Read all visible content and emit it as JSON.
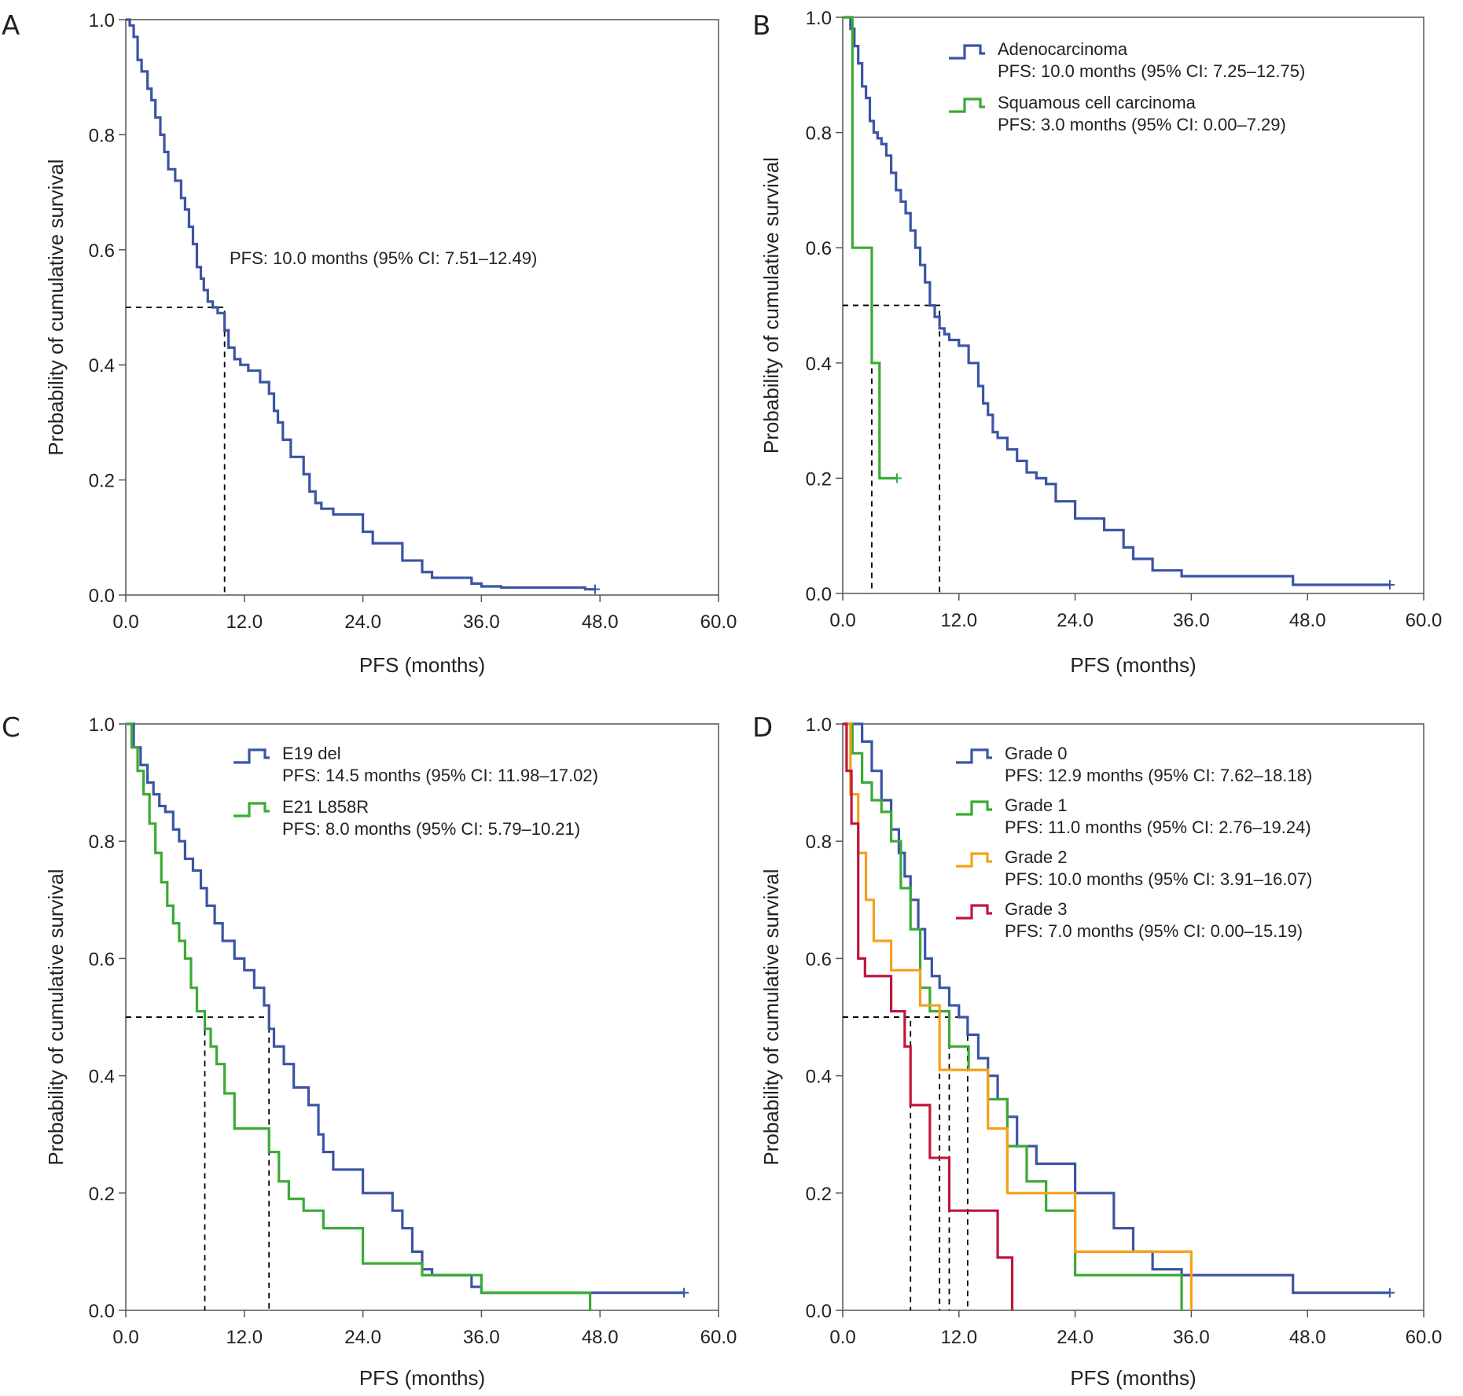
{
  "figure": {
    "panels": [
      "A",
      "B",
      "C",
      "D"
    ]
  },
  "chart_data": [
    {
      "panel_label": "A",
      "type": "line",
      "subtype": "kaplan-meier",
      "xlabel": "PFS (months)",
      "ylabel": "Probability of cumulative survival",
      "xlim": [
        0,
        60
      ],
      "ylim": [
        0,
        1
      ],
      "xticks": [
        "0.0",
        "12.0",
        "24.0",
        "36.0",
        "48.0",
        "60.0"
      ],
      "yticks": [
        "0.0",
        "0.2",
        "0.4",
        "0.6",
        "0.8",
        "1.0"
      ],
      "annotation": "PFS: 10.0 months (95% CI: 7.51–12.49)",
      "median_lines": [
        {
          "x": 10.0,
          "y": 0.5,
          "color": "#000000"
        }
      ],
      "series": [
        {
          "color": "#3b54a4",
          "x": [
            0,
            0.4,
            0.8,
            1.2,
            1.6,
            2.2,
            2.6,
            3.0,
            3.5,
            3.9,
            4.3,
            5.0,
            5.6,
            6.0,
            6.4,
            6.8,
            7.2,
            7.6,
            7.9,
            8.3,
            8.8,
            9.3,
            10.0,
            10.4,
            11.0,
            11.6,
            12.4,
            13.6,
            14.5,
            15.0,
            15.4,
            15.9,
            16.7,
            18.0,
            18.6,
            19.2,
            19.8,
            21.0,
            24.0,
            25.0,
            28.0,
            30.0,
            31.0,
            35.0,
            36.0,
            38.0,
            46.5,
            47.5
          ],
          "y": [
            1.0,
            0.99,
            0.97,
            0.93,
            0.91,
            0.88,
            0.86,
            0.83,
            0.8,
            0.77,
            0.74,
            0.72,
            0.69,
            0.67,
            0.64,
            0.61,
            0.57,
            0.55,
            0.53,
            0.51,
            0.5,
            0.49,
            0.46,
            0.43,
            0.41,
            0.4,
            0.39,
            0.37,
            0.35,
            0.32,
            0.3,
            0.27,
            0.24,
            0.21,
            0.18,
            0.16,
            0.15,
            0.14,
            0.11,
            0.09,
            0.06,
            0.04,
            0.03,
            0.02,
            0.015,
            0.013,
            0.01,
            0.01
          ],
          "censored": [
            47.5
          ]
        }
      ]
    },
    {
      "panel_label": "B",
      "type": "line",
      "subtype": "kaplan-meier",
      "xlabel": "PFS (months)",
      "ylabel": "Probability of cumulative survival",
      "xlim": [
        0,
        60
      ],
      "ylim": [
        0,
        1
      ],
      "xticks": [
        "0.0",
        "12.0",
        "24.0",
        "36.0",
        "48.0",
        "60.0"
      ],
      "yticks": [
        "0.0",
        "0.2",
        "0.4",
        "0.6",
        "0.8",
        "1.0"
      ],
      "median_lines": [
        {
          "x": 3.0,
          "y": 0.5,
          "color": "#000000"
        },
        {
          "x": 10.0,
          "y": 0.5,
          "color": "#000000"
        }
      ],
      "series": [
        {
          "name": "Adenocarcinoma",
          "stat": "PFS: 10.0 months (95% CI: 7.25–12.75)",
          "color": "#3b54a4",
          "x": [
            0,
            0.8,
            1.2,
            1.6,
            2.0,
            2.4,
            2.8,
            3.2,
            3.6,
            4.0,
            4.5,
            5.0,
            5.5,
            6.0,
            6.5,
            7.0,
            7.5,
            8.0,
            8.5,
            9.0,
            9.5,
            10.0,
            10.5,
            11.0,
            12.0,
            13.0,
            14.0,
            14.5,
            15.0,
            15.5,
            16.0,
            17.0,
            18.0,
            19.0,
            20.0,
            21.0,
            22.0,
            24.0,
            27.0,
            29.0,
            30.0,
            32.0,
            35.0,
            46.5,
            56.5
          ],
          "y": [
            1.0,
            0.98,
            0.95,
            0.92,
            0.88,
            0.86,
            0.82,
            0.8,
            0.79,
            0.78,
            0.76,
            0.73,
            0.7,
            0.68,
            0.66,
            0.63,
            0.6,
            0.57,
            0.54,
            0.5,
            0.48,
            0.46,
            0.45,
            0.44,
            0.43,
            0.4,
            0.36,
            0.33,
            0.31,
            0.28,
            0.27,
            0.25,
            0.23,
            0.21,
            0.2,
            0.19,
            0.16,
            0.13,
            0.11,
            0.08,
            0.06,
            0.04,
            0.03,
            0.015,
            0.015
          ],
          "censored": [
            56.5
          ]
        },
        {
          "name": "Squamous cell carcinoma",
          "stat": "PFS: 3.0 months (95% CI: 0.00–7.29)",
          "color": "#3aaa35",
          "x": [
            0,
            1.0,
            3.0,
            3.8,
            4.6,
            5.6
          ],
          "y": [
            1.0,
            0.6,
            0.4,
            0.2,
            0.2,
            0.2
          ],
          "censored": [
            5.6
          ]
        }
      ]
    },
    {
      "panel_label": "C",
      "type": "line",
      "subtype": "kaplan-meier",
      "xlabel": "PFS (months)",
      "ylabel": "Probability of cumulative survival",
      "xlim": [
        0,
        60
      ],
      "ylim": [
        0,
        1
      ],
      "xticks": [
        "0.0",
        "12.0",
        "24.0",
        "36.0",
        "48.0",
        "60.0"
      ],
      "yticks": [
        "0.0",
        "0.2",
        "0.4",
        "0.6",
        "0.8",
        "1.0"
      ],
      "median_lines": [
        {
          "x": 8.0,
          "y": 0.5,
          "color": "#000000"
        },
        {
          "x": 14.5,
          "y": 0.5,
          "color": "#000000"
        }
      ],
      "series": [
        {
          "name": "E19 del",
          "stat": "PFS: 14.5 months (95% CI: 11.98–17.02)",
          "color": "#3b54a4",
          "x": [
            0,
            0.8,
            1.5,
            2.2,
            2.8,
            3.4,
            4.0,
            4.8,
            5.4,
            6.0,
            6.8,
            7.6,
            8.2,
            9.0,
            9.8,
            11.0,
            12.0,
            13.0,
            14.0,
            14.5,
            15.0,
            16.0,
            17.0,
            18.5,
            19.5,
            20.0,
            21.0,
            24.0,
            27.0,
            28.0,
            29.0,
            30.0,
            31.0,
            35.0,
            36.0,
            56.5
          ],
          "y": [
            1.0,
            0.96,
            0.93,
            0.9,
            0.88,
            0.86,
            0.85,
            0.82,
            0.8,
            0.77,
            0.75,
            0.72,
            0.69,
            0.66,
            0.63,
            0.6,
            0.58,
            0.55,
            0.52,
            0.48,
            0.45,
            0.42,
            0.38,
            0.35,
            0.3,
            0.27,
            0.24,
            0.2,
            0.17,
            0.14,
            0.1,
            0.07,
            0.06,
            0.04,
            0.03,
            0.03
          ],
          "censored": [
            56.5
          ]
        },
        {
          "name": "E21 L858R",
          "stat": "PFS: 8.0 months (95% CI: 5.79–10.21)",
          "color": "#3aaa35",
          "x": [
            0,
            0.6,
            1.2,
            1.8,
            2.4,
            3.0,
            3.6,
            4.2,
            4.8,
            5.4,
            6.0,
            6.6,
            7.2,
            8.0,
            8.6,
            9.2,
            10.0,
            11.0,
            14.5,
            15.5,
            16.5,
            18.0,
            20.0,
            24.0,
            30.0,
            36.0,
            47.0
          ],
          "y": [
            1.0,
            0.96,
            0.92,
            0.88,
            0.83,
            0.78,
            0.73,
            0.69,
            0.66,
            0.63,
            0.6,
            0.55,
            0.51,
            0.48,
            0.45,
            0.42,
            0.37,
            0.31,
            0.27,
            0.22,
            0.19,
            0.17,
            0.14,
            0.08,
            0.06,
            0.03,
            0.0
          ],
          "censored": []
        }
      ]
    },
    {
      "panel_label": "D",
      "type": "line",
      "subtype": "kaplan-meier",
      "xlabel": "PFS (months)",
      "ylabel": "Probability of cumulative survival",
      "xlim": [
        0,
        60
      ],
      "ylim": [
        0,
        1
      ],
      "xticks": [
        "0.0",
        "12.0",
        "24.0",
        "36.0",
        "48.0",
        "60.0"
      ],
      "yticks": [
        "0.0",
        "0.2",
        "0.4",
        "0.6",
        "0.8",
        "1.0"
      ],
      "median_lines": [
        {
          "x": 7.0,
          "y": 0.5,
          "color": "#000000"
        },
        {
          "x": 10.0,
          "y": 0.5,
          "color": "#000000"
        },
        {
          "x": 11.0,
          "y": 0.5,
          "color": "#000000"
        },
        {
          "x": 12.9,
          "y": 0.5,
          "color": "#000000"
        }
      ],
      "series": [
        {
          "name": "Grade 0",
          "stat": "PFS: 12.9 months (95% CI: 7.62–18.18)",
          "color": "#3b54a4",
          "x": [
            0,
            2.0,
            3.0,
            4.0,
            5.0,
            5.8,
            6.4,
            7.0,
            7.8,
            8.5,
            9.2,
            10.0,
            11.0,
            12.0,
            12.9,
            14.0,
            15.0,
            16.0,
            17.0,
            18.0,
            20.0,
            24.0,
            28.0,
            30.0,
            32.0,
            35.0,
            46.5,
            56.5
          ],
          "y": [
            1.0,
            0.97,
            0.92,
            0.87,
            0.82,
            0.78,
            0.74,
            0.7,
            0.65,
            0.6,
            0.57,
            0.55,
            0.52,
            0.5,
            0.47,
            0.43,
            0.4,
            0.36,
            0.33,
            0.28,
            0.25,
            0.2,
            0.14,
            0.1,
            0.07,
            0.06,
            0.03,
            0.03
          ],
          "censored": [
            56.5
          ]
        },
        {
          "name": "Grade 1",
          "stat": "PFS: 11.0 months (95% CI: 2.76–19.24)",
          "color": "#3aaa35",
          "x": [
            0,
            1.0,
            2.0,
            3.0,
            4.0,
            5.0,
            6.0,
            7.0,
            8.0,
            9.0,
            11.0,
            13.0,
            15.0,
            17.0,
            19.0,
            21.0,
            24.0,
            35.0
          ],
          "y": [
            1.0,
            0.95,
            0.9,
            0.87,
            0.85,
            0.8,
            0.72,
            0.65,
            0.55,
            0.51,
            0.45,
            0.41,
            0.36,
            0.28,
            0.22,
            0.17,
            0.06,
            0.0
          ],
          "censored": []
        },
        {
          "name": "Grade 2",
          "stat": "PFS: 10.0 months (95% CI: 3.91–16.07)",
          "color": "#f5a01a",
          "x": [
            0,
            0.8,
            1.6,
            2.4,
            3.2,
            5.0,
            7.0,
            8.0,
            10.0,
            14.0,
            15.0,
            17.0,
            20.0,
            24.0,
            36.0
          ],
          "y": [
            1.0,
            0.88,
            0.78,
            0.7,
            0.63,
            0.58,
            0.58,
            0.52,
            0.41,
            0.41,
            0.31,
            0.2,
            0.2,
            0.1,
            0.0
          ],
          "censored": []
        },
        {
          "name": "Grade 3",
          "stat": "PFS: 7.0 months (95% CI: 0.00–15.19)",
          "color": "#c0163c",
          "x": [
            0,
            0.4,
            0.9,
            1.6,
            2.3,
            5.0,
            6.4,
            7.0,
            9.0,
            11.0,
            16.0,
            17.5
          ],
          "y": [
            1.0,
            0.92,
            0.83,
            0.6,
            0.57,
            0.51,
            0.45,
            0.35,
            0.26,
            0.17,
            0.09,
            0.0
          ],
          "censored": []
        }
      ]
    }
  ]
}
